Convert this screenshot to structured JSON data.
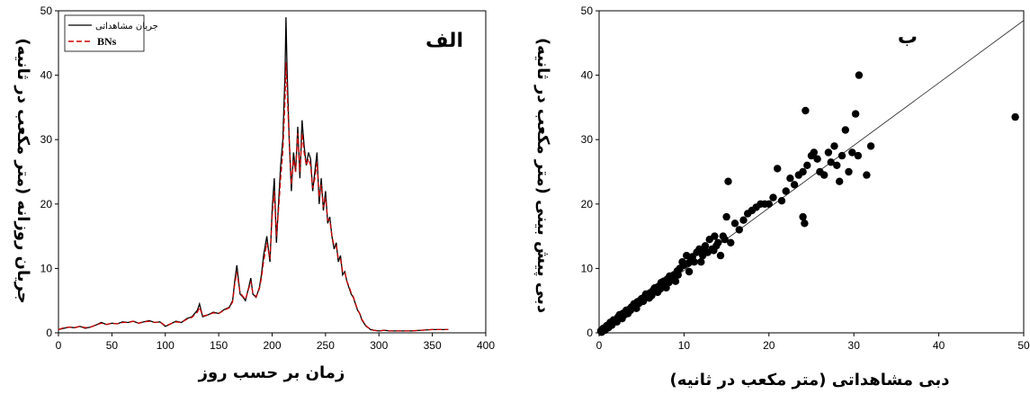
{
  "chart_data": [
    {
      "type": "line",
      "panel_label": "الف",
      "xlabel": "زمان بر حسب روز",
      "ylabel": "جریان روزانه (متر مکعب در ثانیه)",
      "xlim": [
        0,
        400
      ],
      "ylim": [
        0,
        50
      ],
      "xticks": [
        0,
        50,
        100,
        150,
        200,
        250,
        300,
        350,
        400
      ],
      "yticks": [
        0,
        10,
        20,
        30,
        40,
        50
      ],
      "grid": false,
      "legend": "top-left",
      "series": [
        {
          "name": "جریان مشاهداتی",
          "color": "#000000",
          "x": [
            0,
            5,
            10,
            15,
            20,
            25,
            30,
            35,
            40,
            45,
            50,
            55,
            60,
            65,
            70,
            75,
            80,
            85,
            90,
            95,
            100,
            105,
            110,
            115,
            120,
            125,
            130,
            132,
            135,
            140,
            145,
            150,
            155,
            160,
            163,
            165,
            167,
            170,
            173,
            175,
            178,
            180,
            182,
            185,
            188,
            190,
            192,
            195,
            198,
            200,
            202,
            204,
            206,
            208,
            210,
            212,
            213,
            214,
            216,
            218,
            220,
            222,
            224,
            226,
            228,
            230,
            232,
            234,
            236,
            238,
            240,
            242,
            244,
            246,
            248,
            250,
            252,
            254,
            256,
            258,
            260,
            262,
            264,
            266,
            268,
            270,
            272,
            274,
            276,
            278,
            280,
            282,
            284,
            286,
            288,
            290,
            292,
            295,
            300,
            305,
            310,
            320,
            330,
            340,
            350,
            360,
            365
          ],
          "y": [
            0.5,
            0.7,
            0.9,
            0.8,
            1.0,
            0.7,
            0.9,
            1.2,
            1.6,
            1.3,
            1.5,
            1.4,
            1.7,
            1.6,
            1.8,
            1.5,
            1.7,
            1.9,
            1.6,
            1.7,
            1.0,
            1.4,
            1.8,
            1.6,
            2.2,
            2.5,
            3.5,
            4.5,
            2.5,
            2.8,
            3.2,
            3.0,
            3.6,
            4.0,
            5.0,
            8.0,
            10.5,
            6.0,
            5.5,
            5.0,
            7.0,
            8.5,
            6.0,
            5.5,
            7.0,
            9.0,
            12.0,
            15.0,
            11.0,
            19.0,
            24.0,
            14.0,
            20.0,
            26.0,
            30.0,
            40.0,
            49.0,
            41.0,
            30.0,
            22.0,
            28.0,
            25.0,
            32.0,
            24.0,
            33.0,
            29.0,
            26.0,
            28.0,
            27.0,
            22.0,
            25.0,
            28.0,
            20.0,
            24.0,
            19.0,
            22.0,
            17.0,
            18.0,
            15.0,
            13.0,
            14.0,
            11.0,
            12.0,
            9.0,
            9.5,
            8.0,
            7.0,
            6.0,
            5.5,
            4.5,
            3.5,
            3.0,
            2.0,
            1.5,
            1.0,
            0.8,
            0.5,
            0.4,
            0.3,
            0.4,
            0.3,
            0.3,
            0.3,
            0.4,
            0.5,
            0.5,
            0.5
          ]
        },
        {
          "name": "BNs",
          "color": "#cc0000",
          "x": [
            0,
            5,
            10,
            15,
            20,
            25,
            30,
            35,
            40,
            45,
            50,
            55,
            60,
            65,
            70,
            75,
            80,
            85,
            90,
            95,
            100,
            105,
            110,
            115,
            120,
            125,
            130,
            132,
            135,
            140,
            145,
            150,
            155,
            160,
            163,
            165,
            167,
            170,
            173,
            175,
            178,
            180,
            182,
            185,
            188,
            190,
            192,
            195,
            198,
            200,
            202,
            204,
            206,
            208,
            210,
            212,
            213,
            214,
            216,
            218,
            220,
            222,
            224,
            226,
            228,
            230,
            232,
            234,
            236,
            238,
            240,
            242,
            244,
            246,
            248,
            250,
            252,
            254,
            256,
            258,
            260,
            262,
            264,
            266,
            268,
            270,
            272,
            274,
            276,
            278,
            280,
            282,
            284,
            286,
            288,
            290,
            292,
            295,
            300,
            305,
            310,
            320,
            330,
            340,
            350,
            360,
            365
          ],
          "y": [
            0.5,
            0.8,
            0.9,
            0.8,
            1.0,
            0.8,
            0.9,
            1.2,
            1.5,
            1.3,
            1.5,
            1.4,
            1.6,
            1.6,
            1.8,
            1.5,
            1.7,
            1.8,
            1.6,
            1.7,
            1.1,
            1.4,
            1.7,
            1.6,
            2.1,
            2.4,
            3.2,
            4.0,
            2.6,
            2.8,
            3.1,
            3.0,
            3.5,
            3.9,
            4.8,
            7.5,
            9.5,
            6.2,
            5.6,
            5.2,
            6.8,
            8.0,
            6.2,
            5.6,
            6.8,
            8.5,
            11.0,
            14.0,
            11.5,
            18.0,
            22.0,
            15.0,
            19.0,
            24.0,
            28.0,
            36.0,
            42.0,
            38.0,
            30.0,
            23.0,
            27.0,
            25.0,
            31.0,
            25.0,
            31.0,
            28.0,
            26.0,
            27.0,
            26.0,
            22.5,
            24.0,
            26.5,
            21.0,
            23.0,
            19.5,
            21.0,
            17.5,
            17.5,
            15.0,
            13.5,
            13.5,
            11.5,
            11.5,
            9.5,
            9.5,
            8.0,
            7.2,
            6.2,
            5.6,
            4.6,
            3.6,
            3.0,
            2.1,
            1.6,
            1.1,
            0.8,
            0.6,
            0.4,
            0.3,
            0.4,
            0.3,
            0.3,
            0.3,
            0.4,
            0.5,
            0.5,
            0.5
          ]
        }
      ]
    },
    {
      "type": "scatter",
      "panel_label": "ب",
      "xlabel": "دبی مشاهداتی (متر مکعب در ثانیه)",
      "ylabel": "دبی پیش بینی (متر مکعب در ثانیه)",
      "xlim": [
        0,
        50
      ],
      "ylim": [
        0,
        50
      ],
      "xticks": [
        0,
        10,
        20,
        30,
        40,
        50
      ],
      "yticks": [
        0,
        10,
        20,
        30,
        40,
        50
      ],
      "grid": false,
      "fit_line": [
        [
          0,
          0
        ],
        [
          50,
          48.5
        ]
      ],
      "points": [
        [
          0.2,
          0.3
        ],
        [
          0.4,
          0.5
        ],
        [
          0.6,
          0.6
        ],
        [
          0.8,
          0.9
        ],
        [
          1.0,
          1.0
        ],
        [
          1.2,
          1.3
        ],
        [
          1.4,
          1.5
        ],
        [
          1.6,
          1.6
        ],
        [
          1.8,
          1.9
        ],
        [
          2.0,
          2.0
        ],
        [
          2.2,
          2.4
        ],
        [
          2.5,
          2.5
        ],
        [
          2.8,
          3.0
        ],
        [
          3.0,
          2.8
        ],
        [
          3.2,
          3.5
        ],
        [
          3.5,
          3.6
        ],
        [
          3.8,
          4.0
        ],
        [
          4.0,
          4.2
        ],
        [
          4.2,
          4.0
        ],
        [
          4.5,
          4.8
        ],
        [
          4.8,
          5.0
        ],
        [
          5.0,
          5.3
        ],
        [
          5.3,
          5.5
        ],
        [
          5.6,
          5.8
        ],
        [
          6.0,
          6.2
        ],
        [
          6.3,
          6.5
        ],
        [
          6.6,
          7.0
        ],
        [
          7.0,
          7.2
        ],
        [
          7.3,
          7.8
        ],
        [
          7.6,
          8.0
        ],
        [
          8.0,
          8.3
        ],
        [
          8.3,
          8.8
        ],
        [
          8.8,
          9.0
        ],
        [
          9.0,
          8.0
        ],
        [
          9.2,
          9.6
        ],
        [
          9.5,
          10.0
        ],
        [
          9.8,
          11.0
        ],
        [
          10.0,
          10.5
        ],
        [
          10.3,
          12.0
        ],
        [
          10.5,
          10.8
        ],
        [
          10.8,
          11.5
        ],
        [
          11.2,
          11.0
        ],
        [
          11.5,
          12.5
        ],
        [
          11.8,
          13.0
        ],
        [
          12.2,
          12.0
        ],
        [
          12.5,
          13.5
        ],
        [
          12.8,
          12.5
        ],
        [
          13.0,
          14.5
        ],
        [
          13.3,
          13.0
        ],
        [
          13.6,
          15.0
        ],
        [
          13.8,
          13.5
        ],
        [
          14.0,
          14.0
        ],
        [
          14.3,
          12.0
        ],
        [
          14.6,
          15.0
        ],
        [
          15.0,
          18.0
        ],
        [
          15.2,
          23.5
        ],
        [
          15.5,
          14.0
        ],
        [
          16.0,
          17.0
        ],
        [
          16.5,
          16.0
        ],
        [
          17.0,
          17.5
        ],
        [
          17.5,
          18.5
        ],
        [
          18.0,
          19.0
        ],
        [
          18.5,
          19.5
        ],
        [
          19.0,
          20.0
        ],
        [
          19.5,
          20.0
        ],
        [
          20.0,
          20.0
        ],
        [
          20.5,
          21.0
        ],
        [
          21.0,
          25.5
        ],
        [
          21.5,
          20.5
        ],
        [
          22.0,
          22.0
        ],
        [
          22.5,
          24.0
        ],
        [
          23.0,
          23.0
        ],
        [
          23.5,
          24.5
        ],
        [
          24.0,
          25.0
        ],
        [
          24.3,
          34.5
        ],
        [
          24.5,
          26.0
        ],
        [
          25.0,
          27.5
        ],
        [
          25.3,
          28.0
        ],
        [
          25.7,
          27.0
        ],
        [
          26.0,
          25.0
        ],
        [
          26.5,
          24.5
        ],
        [
          27.0,
          28.0
        ],
        [
          27.3,
          26.5
        ],
        [
          27.7,
          29.0
        ],
        [
          28.0,
          26.0
        ],
        [
          28.3,
          23.5
        ],
        [
          28.6,
          27.5
        ],
        [
          29.0,
          31.5
        ],
        [
          29.4,
          25.0
        ],
        [
          29.8,
          28.0
        ],
        [
          30.2,
          34.0
        ],
        [
          30.6,
          40.0
        ],
        [
          31.5,
          24.5
        ],
        [
          32.0,
          29.0
        ],
        [
          24.0,
          18.0
        ],
        [
          24.2,
          17.0
        ],
        [
          30.5,
          27.5
        ],
        [
          49.0,
          33.5
        ],
        [
          0.3,
          0.1
        ],
        [
          0.5,
          0.7
        ],
        [
          0.7,
          0.4
        ],
        [
          0.9,
          1.1
        ],
        [
          1.1,
          0.8
        ],
        [
          1.3,
          1.6
        ],
        [
          1.5,
          1.2
        ],
        [
          1.7,
          2.0
        ],
        [
          2.1,
          1.7
        ],
        [
          2.4,
          2.8
        ],
        [
          2.7,
          2.2
        ],
        [
          3.1,
          3.3
        ],
        [
          3.4,
          3.0
        ],
        [
          3.7,
          3.5
        ],
        [
          4.1,
          4.5
        ],
        [
          4.4,
          3.8
        ],
        [
          4.7,
          4.6
        ],
        [
          5.2,
          4.9
        ],
        [
          5.5,
          6.0
        ],
        [
          5.9,
          5.4
        ],
        [
          6.2,
          5.8
        ],
        [
          6.5,
          6.9
        ],
        [
          6.9,
          6.3
        ],
        [
          7.2,
          6.8
        ],
        [
          7.5,
          7.5
        ],
        [
          7.9,
          7.0
        ],
        [
          8.2,
          7.8
        ],
        [
          8.6,
          8.5
        ],
        [
          9.3,
          9.0
        ],
        [
          10.6,
          9.5
        ],
        [
          11.0,
          11.8
        ],
        [
          12.0,
          11.0
        ],
        [
          12.3,
          12.8
        ],
        [
          13.5,
          12.8
        ],
        [
          14.8,
          14.5
        ]
      ]
    }
  ]
}
